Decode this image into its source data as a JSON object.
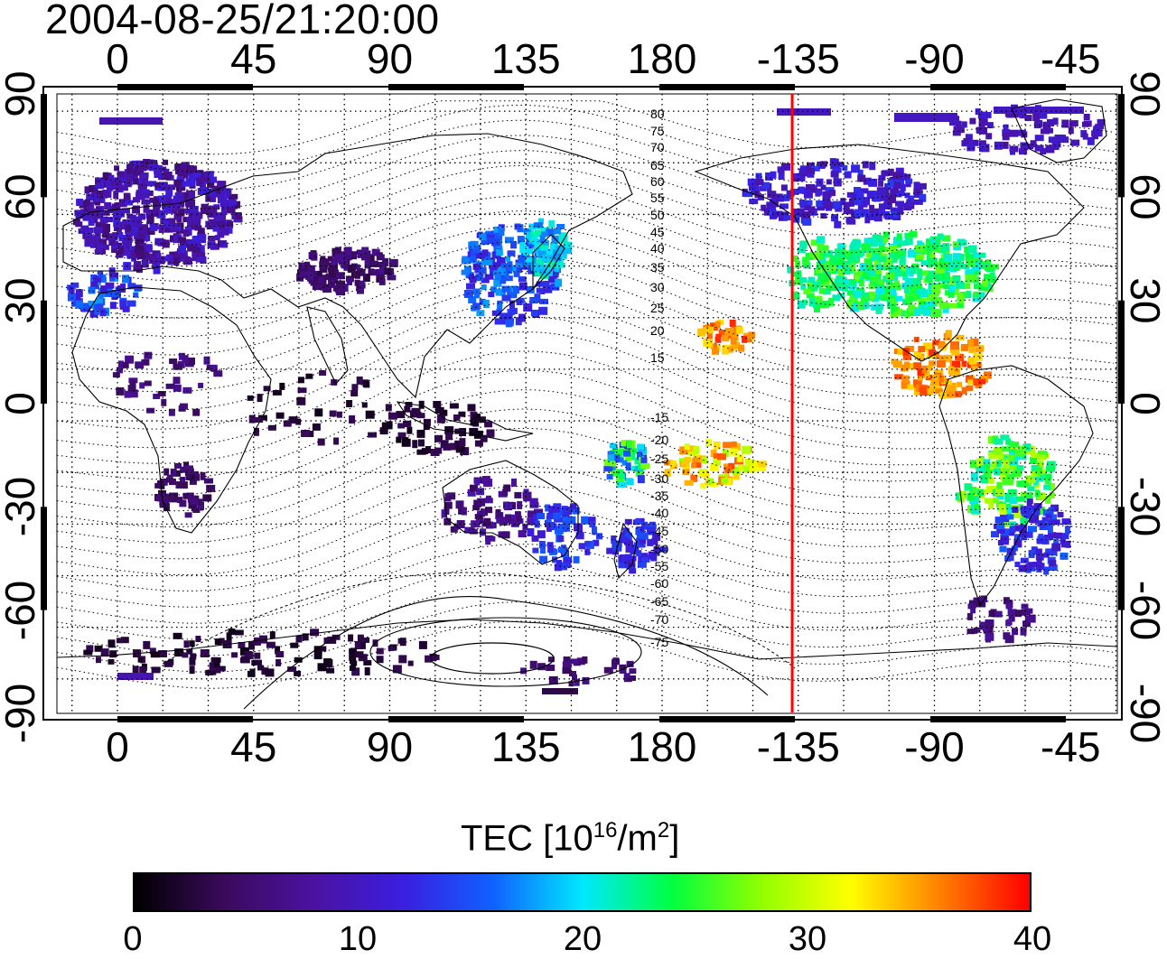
{
  "title": "2004-08-25/21:20:00",
  "x_ticks": [
    "0",
    "45",
    "90",
    "135",
    "180",
    "-135",
    "-90",
    "-45"
  ],
  "y_ticks": [
    "90",
    "60",
    "30",
    "0",
    "-30",
    "-60",
    "-90"
  ],
  "colorbar": {
    "label_main": "TEC  [10",
    "label_sup1": "16",
    "label_mid": "/m",
    "label_sup2": "2",
    "label_end": "]",
    "ticks": [
      "0",
      "10",
      "20",
      "30",
      "40"
    ],
    "min": 0,
    "max": 40,
    "colormap": [
      "#000000",
      "#3a0a5c",
      "#4b12a0",
      "#3a1ee0",
      "#1060ff",
      "#00e8ff",
      "#00ff40",
      "#90ff00",
      "#ffff00",
      "#ff8000",
      "#ff0000"
    ]
  },
  "contour_labels_north": [
    "80",
    "75",
    "70",
    "65",
    "60",
    "55",
    "50",
    "45",
    "40",
    "35",
    "30",
    "25",
    "20",
    "15"
  ],
  "contour_labels_south": [
    "-15",
    "-20",
    "-25",
    "-30",
    "-35",
    "-40",
    "-45",
    "-50",
    "-55",
    "-60",
    "-65",
    "-70",
    "-75"
  ],
  "terminator_longitude": -137,
  "colors": {
    "terminator": "#ff0000",
    "frame": "#000000",
    "grid": "#000000"
  }
}
